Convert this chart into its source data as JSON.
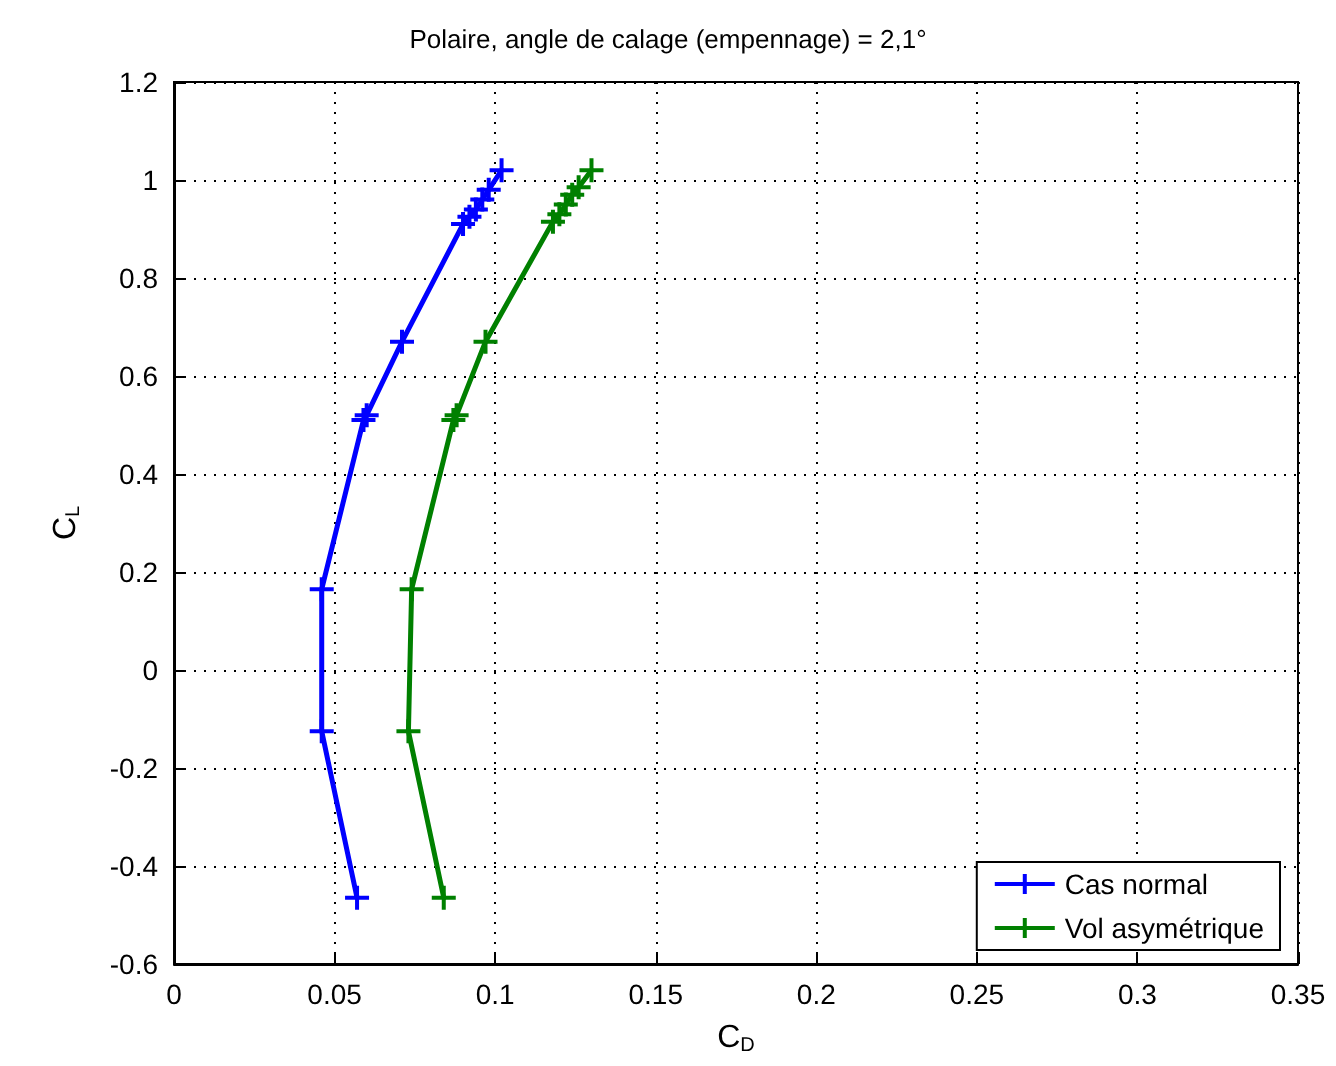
{
  "chart_data": {
    "type": "line",
    "title": "Polaire, angle de calage (empennage) = 2,1°",
    "xlabel": "C$_{D}$",
    "ylabel": "C$_{L}$",
    "xlim": [
      0,
      0.35
    ],
    "xticks": [
      0,
      0.05,
      0.1,
      0.15,
      0.2,
      0.25,
      0.3,
      0.35
    ],
    "ylim": [
      -0.6,
      1.2
    ],
    "yticks": [
      -0.6,
      -0.4,
      -0.2,
      0,
      0.2,
      0.4,
      0.6,
      0.8,
      1,
      1.2
    ],
    "grid": true,
    "legend": "bottom right",
    "marker": "cross",
    "line_style": "solid",
    "series": [
      {
        "name": "Cas normal",
        "color": "#0000ff",
        "x": [
          0.057,
          0.046,
          0.046,
          0.059,
          0.06,
          0.071,
          0.09,
          0.092,
          0.094,
          0.096,
          0.098,
          0.102
        ],
        "values": [
          -0.465,
          -0.125,
          0.165,
          0.51,
          0.52,
          0.67,
          0.91,
          0.925,
          0.94,
          0.96,
          0.98,
          1.02
        ]
      },
      {
        "name": "Vol asymétrique",
        "color": "#008000",
        "x": [
          0.084,
          0.073,
          0.074,
          0.087,
          0.088,
          0.097,
          0.118,
          0.12,
          0.122,
          0.124,
          0.126,
          0.13
        ],
        "values": [
          -0.465,
          -0.125,
          0.165,
          0.51,
          0.52,
          0.67,
          0.915,
          0.93,
          0.95,
          0.97,
          0.985,
          1.02
        ]
      }
    ]
  }
}
